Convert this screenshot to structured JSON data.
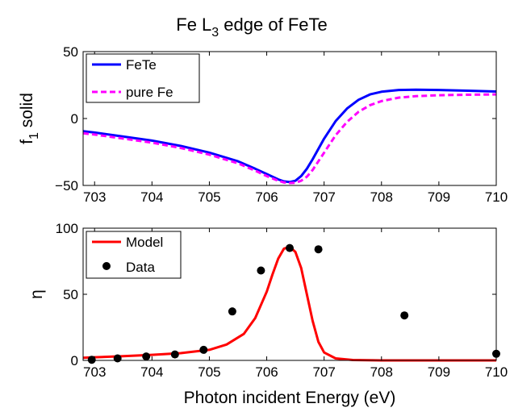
{
  "figure": {
    "title_main": "Fe L",
    "title_sub": "3",
    "title_rest": " edge of FeTe"
  },
  "chart_data": [
    {
      "type": "line",
      "ylabel_main": "f",
      "ylabel_sub": "1",
      "ylabel_rest": " solid",
      "xlim": [
        702.8,
        710
      ],
      "ylim": [
        -50,
        50
      ],
      "xticks": [
        "703",
        "704",
        "705",
        "706",
        "707",
        "708",
        "709",
        "710"
      ],
      "yticks": [
        "50",
        "0",
        "−50"
      ],
      "legend_position": "top-left",
      "series": [
        {
          "name": "FeTe",
          "color": "#0000ff",
          "style": "solid",
          "x": [
            702.8,
            703.0,
            703.5,
            704.0,
            704.5,
            705.0,
            705.5,
            705.8,
            706.0,
            706.2,
            706.3,
            706.4,
            706.5,
            706.6,
            706.7,
            706.8,
            707.0,
            707.2,
            707.4,
            707.6,
            707.8,
            708.0,
            708.3,
            708.6,
            709.0,
            709.5,
            710.0
          ],
          "y": [
            -9.5,
            -10.5,
            -13.5,
            -16.5,
            -20.5,
            -25.5,
            -32.0,
            -37.5,
            -41.5,
            -45.5,
            -47.0,
            -47.5,
            -46.5,
            -43.0,
            -37.5,
            -30.5,
            -15.0,
            -2.0,
            7.5,
            14.0,
            18.0,
            20.0,
            21.3,
            21.5,
            21.3,
            20.8,
            20.2
          ]
        },
        {
          "name": "pure Fe",
          "color": "#ff00ff",
          "style": "dashed",
          "x": [
            702.8,
            703.0,
            703.5,
            704.0,
            704.5,
            705.0,
            705.5,
            705.8,
            706.0,
            706.2,
            706.3,
            706.4,
            706.5,
            706.6,
            706.7,
            706.8,
            707.0,
            707.2,
            707.4,
            707.6,
            707.8,
            708.0,
            708.3,
            708.6,
            709.0,
            709.5,
            710.0
          ],
          "y": [
            -11.0,
            -12.0,
            -15.0,
            -18.0,
            -22.0,
            -27.0,
            -33.5,
            -39.0,
            -43.0,
            -46.5,
            -47.8,
            -48.2,
            -48.0,
            -46.5,
            -43.5,
            -38.5,
            -25.5,
            -12.5,
            -2.5,
            5.0,
            10.0,
            13.0,
            15.6,
            16.7,
            17.4,
            17.8,
            18.0
          ]
        }
      ]
    },
    {
      "type": "line",
      "ylabel": "η",
      "xlabel": "Photon incident Energy (eV)",
      "xlim": [
        702.8,
        710
      ],
      "ylim": [
        0,
        100
      ],
      "xticks": [
        "703",
        "704",
        "705",
        "706",
        "707",
        "708",
        "709",
        "710"
      ],
      "yticks": [
        "100",
        "50",
        "0"
      ],
      "legend_position": "top-left",
      "series": [
        {
          "name": "Model",
          "color": "#ff0000",
          "style": "solid",
          "x": [
            702.8,
            703.0,
            703.5,
            704.0,
            704.5,
            705.0,
            705.3,
            705.6,
            705.8,
            706.0,
            706.1,
            706.2,
            706.3,
            706.4,
            706.5,
            706.6,
            706.7,
            706.8,
            706.9,
            707.0,
            707.2,
            707.5,
            708.0,
            709.0,
            710.0
          ],
          "y": [
            2.0,
            2.4,
            3.2,
            4.2,
            5.5,
            8.0,
            12.0,
            20.0,
            32.0,
            52.0,
            65.0,
            77.0,
            84.5,
            86.0,
            82.0,
            70.0,
            50.0,
            30.0,
            14.0,
            6.0,
            1.5,
            0.3,
            0.0,
            0.0,
            0.0
          ]
        },
        {
          "name": "Data",
          "color": "#000000",
          "style": "markers",
          "x": [
            702.95,
            703.4,
            703.9,
            704.4,
            704.9,
            705.4,
            705.9,
            706.4,
            706.9,
            708.4,
            710.0
          ],
          "y": [
            0.5,
            1.5,
            3.0,
            4.5,
            8.0,
            37.0,
            68.0,
            85.0,
            84.0,
            34.0,
            5.0
          ]
        }
      ]
    }
  ]
}
